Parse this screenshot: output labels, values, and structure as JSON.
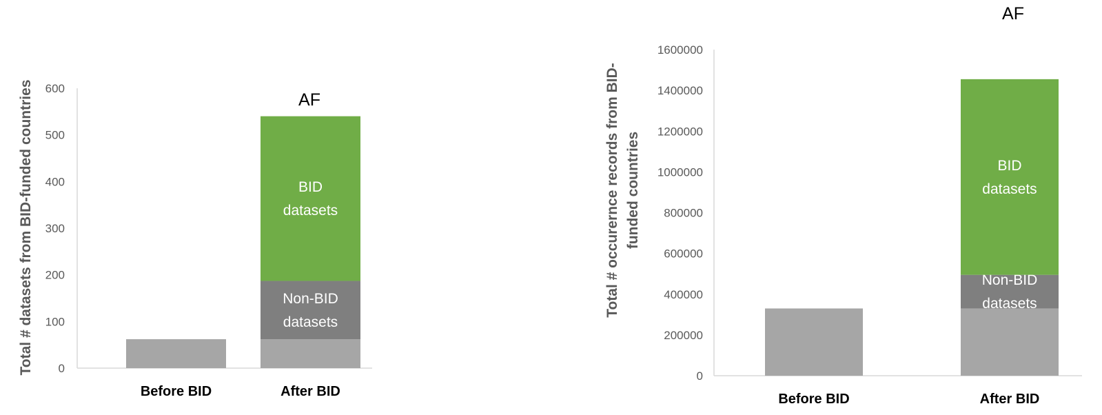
{
  "chart_data": [
    {
      "type": "bar",
      "stacked": true,
      "title": "AF",
      "ylabel": "Total # datasets from BID-funded countries",
      "categories": [
        "Before BID",
        "After BID"
      ],
      "ylim": [
        0,
        600
      ],
      "yticks": [
        "0",
        "100",
        "200",
        "300",
        "400",
        "500",
        "600"
      ],
      "series": [
        {
          "key": "base",
          "values": [
            62,
            62
          ],
          "color": "#a6a6a6",
          "label_lines": []
        },
        {
          "key": "nonbid",
          "values": [
            0,
            125
          ],
          "color": "#7f7f7f",
          "label_lines": [
            "Non-BID",
            "datasets"
          ]
        },
        {
          "key": "bid",
          "values": [
            0,
            353
          ],
          "color": "#70ad47",
          "label_lines": [
            "BID",
            "datasets"
          ]
        }
      ]
    },
    {
      "type": "bar",
      "stacked": true,
      "title": "AF",
      "ylabel_lines": [
        "Total # occurernce records from BID-",
        "funded countries"
      ],
      "categories": [
        "Before BID",
        "After BID"
      ],
      "ylim": [
        0,
        1600000
      ],
      "yticks": [
        "0",
        "200000",
        "400000",
        "600000",
        "800000",
        "1000000",
        "1200000",
        "1400000",
        "1600000"
      ],
      "series": [
        {
          "key": "base",
          "values": [
            330000,
            330000
          ],
          "color": "#a6a6a6",
          "label_lines": []
        },
        {
          "key": "nonbid",
          "values": [
            0,
            165000
          ],
          "color": "#7f7f7f",
          "label_lines": [
            "Non-BID",
            "datasets"
          ]
        },
        {
          "key": "bid",
          "values": [
            0,
            960000
          ],
          "color": "#70ad47",
          "label_lines": [
            "BID",
            "datasets"
          ]
        }
      ]
    }
  ]
}
